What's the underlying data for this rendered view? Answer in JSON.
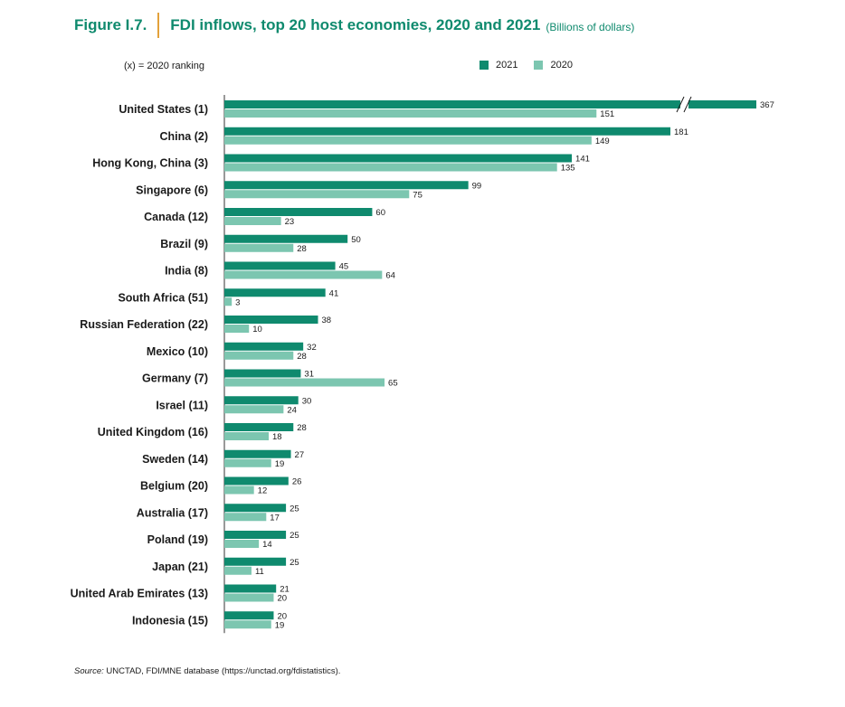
{
  "header": {
    "figure_label": "Figure I.7.",
    "title": "FDI inflows, top 20 host economies, 2020 and 2021",
    "unit": "(Billions of dollars)"
  },
  "ranking_note": "(x) = 2020  ranking",
  "legend": [
    {
      "label": "2021",
      "color": "#0f8a6e"
    },
    {
      "label": "2020",
      "color": "#7cc6b0"
    }
  ],
  "source": {
    "prefix": "Source:",
    "text": "UNCTAD, FDI/MNE database (https://unctad.org/fdistatistics)."
  },
  "chart_data": {
    "type": "bar",
    "orientation": "horizontal",
    "title": "FDI inflows, top 20 host economies, 2020 and 2021",
    "xlabel": "",
    "ylabel": "",
    "xlim": [
      0,
      181
    ],
    "axis_break": true,
    "categories": [
      "United States (1)",
      "China (2)",
      "Hong Kong, China (3)",
      "Singapore (6)",
      "Canada (12)",
      "Brazil (9)",
      "India (8)",
      "South Africa (51)",
      "Russian Federation (22)",
      "Mexico (10)",
      "Germany (7)",
      "Israel (11)",
      "United Kingdom (16)",
      "Sweden (14)",
      "Belgium (20)",
      "Australia (17)",
      "Poland (19)",
      "Japan (21)",
      "United Arab Emirates (13)",
      "Indonesia (15)"
    ],
    "series": [
      {
        "name": "2021",
        "color": "#0f8a6e",
        "values": [
          367,
          181,
          141,
          99,
          60,
          50,
          45,
          41,
          38,
          32,
          31,
          30,
          28,
          27,
          26,
          25,
          25,
          25,
          21,
          20
        ]
      },
      {
        "name": "2020",
        "color": "#7cc6b0",
        "values": [
          151,
          149,
          135,
          75,
          23,
          28,
          64,
          3,
          10,
          28,
          65,
          24,
          18,
          19,
          12,
          17,
          14,
          11,
          20,
          19
        ]
      }
    ]
  }
}
